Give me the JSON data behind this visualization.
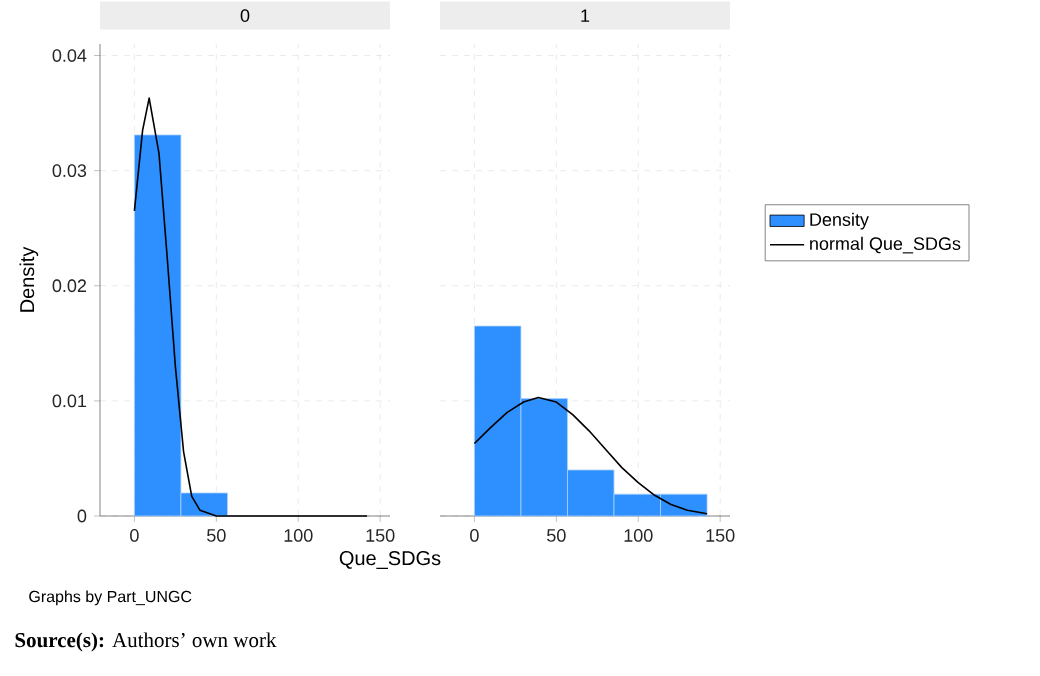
{
  "chart_data": [
    {
      "type": "histogram",
      "title": "0",
      "xlabel": "Que_SDGs",
      "ylabel": "Density",
      "xlim": [
        -21,
        156
      ],
      "ylim": [
        0,
        0.041
      ],
      "xticks": [
        0,
        50,
        100,
        150
      ],
      "yticks": [
        0,
        0.01,
        0.02,
        0.03,
        0.04
      ],
      "grid": true,
      "legend": false,
      "series": [
        {
          "color": "#2e8fff",
          "bins": [
            0,
            28.4,
            56.8
          ],
          "values": [
            0.0331,
            0.002
          ]
        },
        {
          "type": "line",
          "color": "#000000",
          "x": [
            0,
            5,
            9,
            15,
            20,
            25,
            30,
            35,
            40,
            50,
            75,
            142
          ],
          "values": [
            0.0265,
            0.0335,
            0.0363,
            0.0315,
            0.0225,
            0.013,
            0.0056,
            0.0017,
            0.0005,
            0.0,
            0.0,
            0.0
          ]
        }
      ],
      "annotations": [
        "Graphs by Part_UNGC",
        "**Source(s):** Authors’ own work"
      ]
    },
    {
      "type": "histogram",
      "title": "1",
      "xlim": [
        -21,
        156
      ],
      "ylim": [
        0,
        0.041
      ],
      "xticks": [
        0,
        50,
        100,
        150
      ],
      "yticks": [
        0,
        0.01,
        0.02,
        0.03,
        0.04
      ],
      "grid": true,
      "legend": "right",
      "tick_labels": "x",
      "series": [
        {
          "name": "Density",
          "color": "#2e8fff",
          "bins": [
            0,
            28.4,
            56.8,
            85.2,
            113.6,
            142
          ],
          "values": [
            0.0165,
            0.0102,
            0.004,
            0.0019,
            0.0019
          ]
        },
        {
          "name": "normal Que_SDGs",
          "type": "line",
          "color": "#000000",
          "x": [
            0,
            10,
            20,
            30,
            39,
            50,
            60,
            70,
            80,
            90,
            100,
            110,
            120,
            130,
            142
          ],
          "values": [
            0.0063,
            0.0077,
            0.009,
            0.0099,
            0.0103,
            0.0099,
            0.0088,
            0.0074,
            0.0058,
            0.0042,
            0.0029,
            0.0018,
            0.001,
            0.0005,
            0.0002
          ]
        }
      ]
    }
  ]
}
